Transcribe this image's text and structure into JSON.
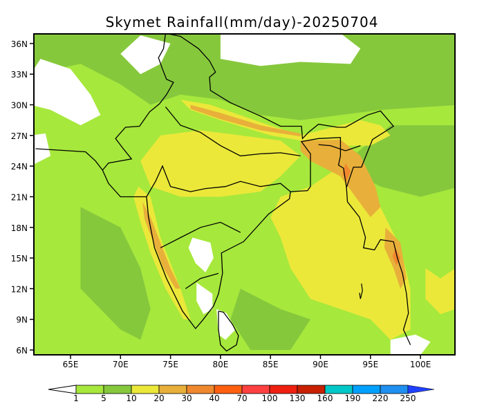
{
  "title": "Skymet Rainfall(mm/day)-20250704",
  "axes": {
    "lat_ticks": [
      "36N",
      "33N",
      "30N",
      "27N",
      "24N",
      "21N",
      "18N",
      "15N",
      "12N",
      "9N",
      "6N"
    ],
    "lat_values": [
      36,
      33,
      30,
      27,
      24,
      21,
      18,
      15,
      12,
      9,
      6
    ],
    "lon_ticks": [
      "65E",
      "70E",
      "75E",
      "80E",
      "85E",
      "90E",
      "95E",
      "100E"
    ],
    "lon_values": [
      65,
      70,
      75,
      80,
      85,
      90,
      95,
      100
    ]
  },
  "colorbar": {
    "labels": [
      "1",
      "5",
      "10",
      "20",
      "30",
      "40",
      "70",
      "100",
      "130",
      "160",
      "190",
      "220",
      "250"
    ],
    "colors": [
      "#a6e83c",
      "#86c83c",
      "#ebe83a",
      "#e8b03a",
      "#f0882e",
      "#ff6010",
      "#ff4040",
      "#f02010",
      "#c82000",
      "#00c8c8",
      "#00a0ff",
      "#2090f0"
    ],
    "under_color": "#ffffff",
    "over_color": "#2040ff"
  },
  "palette": {
    "lightgreen": "#a6e83c",
    "green": "#86c83c",
    "yellow": "#ebe83a",
    "orange": "#e8b03a",
    "darkorange": "#f0882e",
    "white": "#ffffff"
  }
}
